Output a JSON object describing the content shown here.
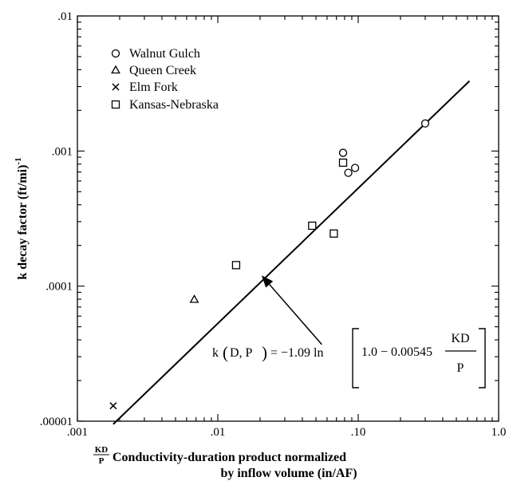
{
  "chart_data": {
    "type": "scatter",
    "xscale": "log",
    "yscale": "log",
    "xlim": [
      0.001,
      1.0
    ],
    "ylim": [
      1e-05,
      0.01
    ],
    "x_ticks": [
      {
        "value": 0.001,
        "label": ".001"
      },
      {
        "value": 0.01,
        "label": ".01"
      },
      {
        "value": 0.1,
        "label": ".10"
      },
      {
        "value": 1.0,
        "label": "1.0"
      }
    ],
    "y_ticks": [
      {
        "value": 1e-05,
        "label": ".00001"
      },
      {
        "value": 0.0001,
        "label": ".0001"
      },
      {
        "value": 0.001,
        "label": ".001"
      },
      {
        "value": 0.01,
        "label": ".01"
      }
    ],
    "ylabel_main": "k decay factor (ft/mi)",
    "ylabel_sup": "-1",
    "xlabel_frac_num": "KD",
    "xlabel_frac_den": "P",
    "xlabel_line1": "Conductivity-duration product normalized",
    "xlabel_line2": "by inflow volume (in/AF)",
    "legend_placement": "top-left",
    "series": [
      {
        "name": "Walnut Gulch",
        "marker": "circle",
        "points": [
          [
            0.078,
            0.00097
          ],
          [
            0.085,
            0.00069
          ],
          [
            0.095,
            0.00075
          ],
          [
            0.3,
            0.0016
          ]
        ]
      },
      {
        "name": "Queen Creek",
        "marker": "triangle",
        "points": [
          [
            0.0068,
            7.9e-05
          ]
        ]
      },
      {
        "name": "Elm Fork",
        "marker": "x",
        "points": [
          [
            0.0018,
            1.3e-05
          ]
        ]
      },
      {
        "name": "Kansas-Nebraska",
        "marker": "square",
        "points": [
          [
            0.0135,
            0.000143
          ],
          [
            0.047,
            0.00028
          ],
          [
            0.067,
            0.000245
          ],
          [
            0.078,
            0.00082
          ]
        ]
      }
    ],
    "fit_line": [
      [
        0.0018,
        9.5e-06
      ],
      [
        0.62,
        0.0033
      ]
    ],
    "annotation": {
      "lhs": "k",
      "args": "D, P",
      "rhs_pre": "= −1.09 ln",
      "inner": "1.0 − 0.00545",
      "frac_num": "KD",
      "frac_den": "P",
      "arrow_tail": [
        0.055,
        3.7e-05
      ],
      "arrow_head": [
        0.0205,
        0.00012
      ]
    }
  }
}
